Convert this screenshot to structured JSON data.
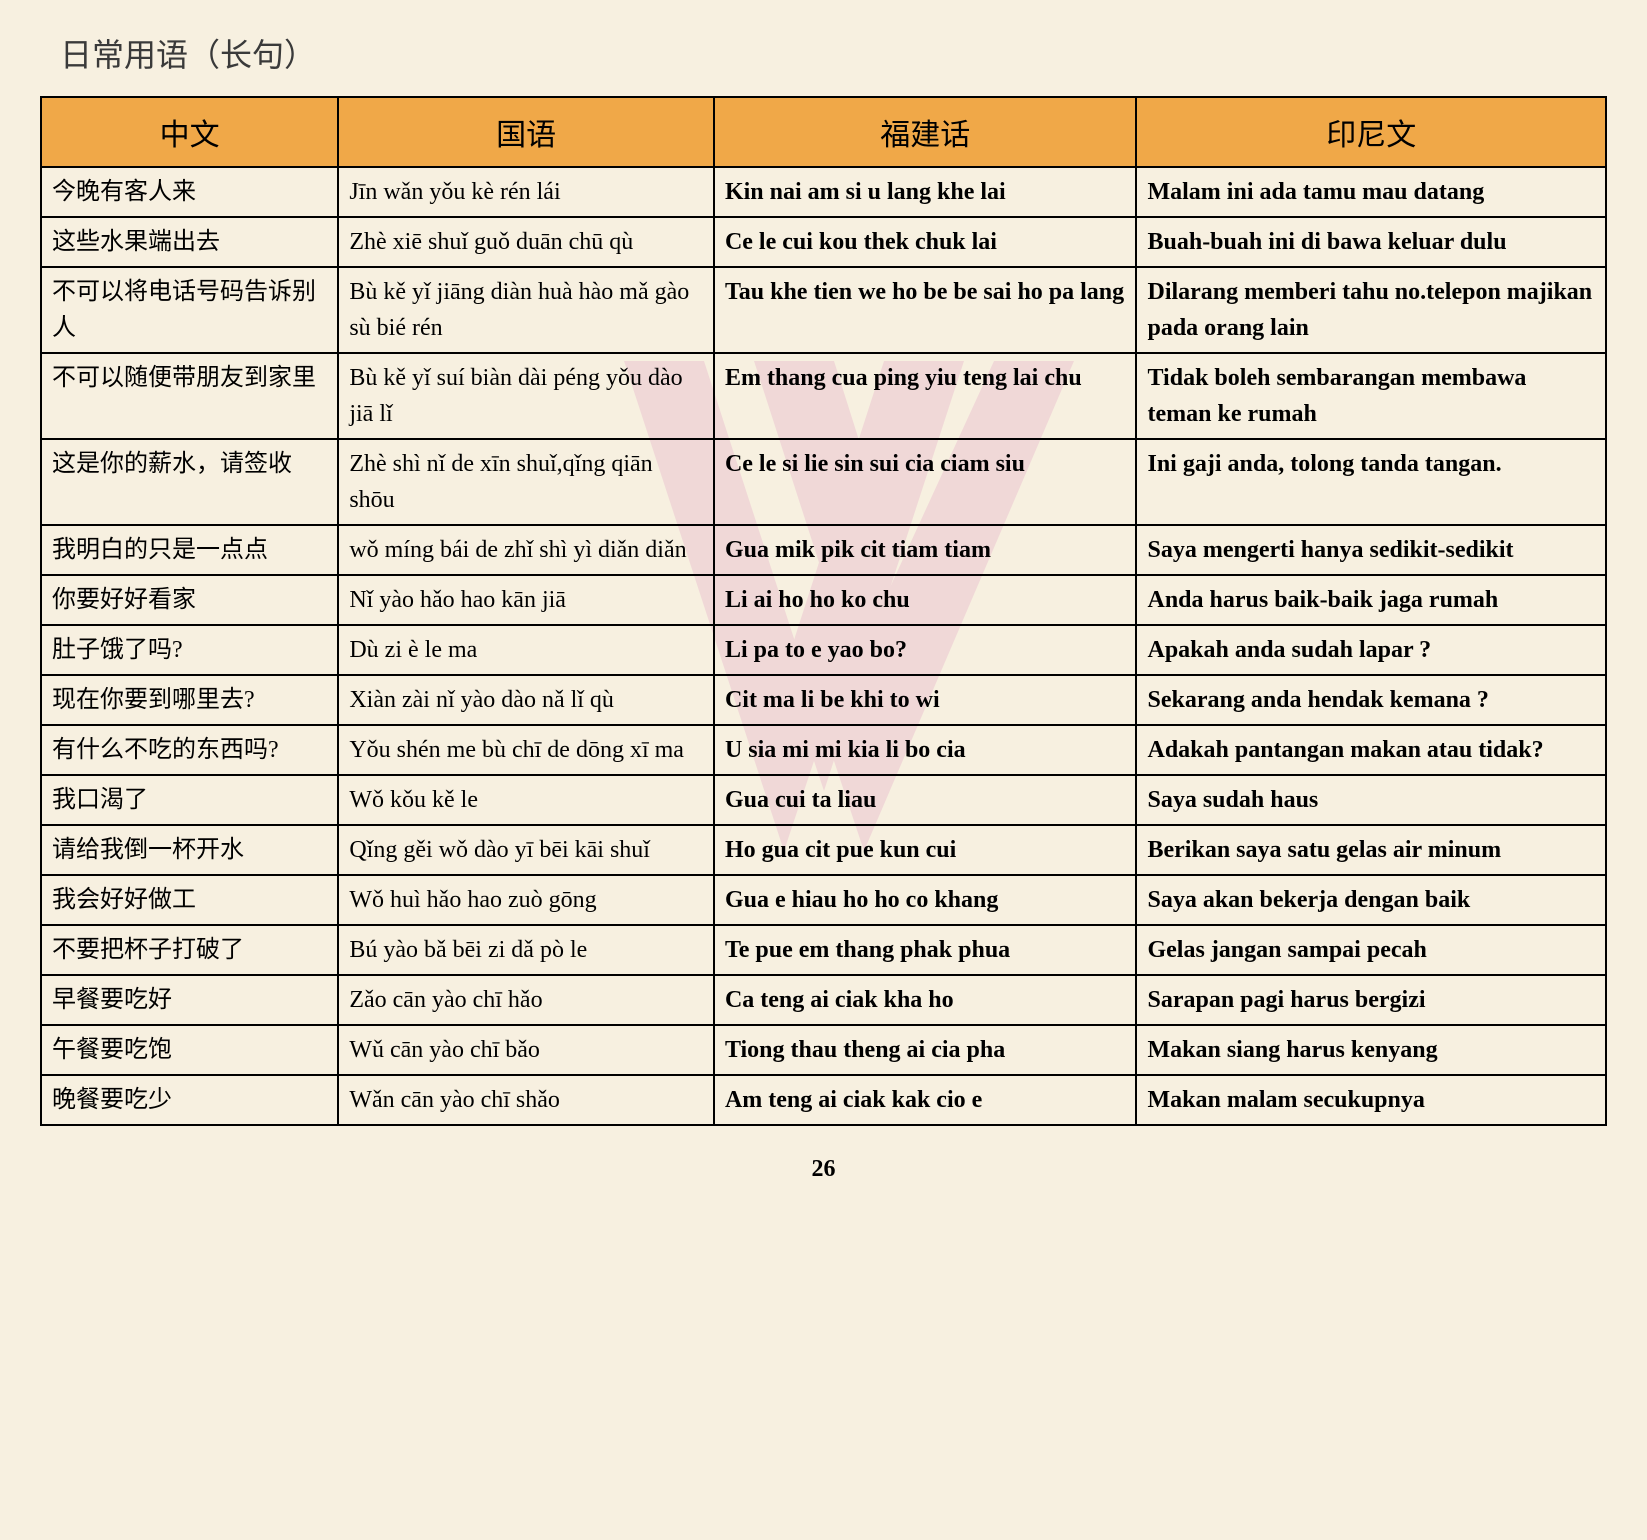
{
  "title": "日常用语（长句）",
  "page_number": "26",
  "colors": {
    "page_background": "#f7f0e0",
    "header_background": "#f0a848",
    "border": "#000000",
    "watermark": "#e8b6cc",
    "text": "#000000",
    "title_text": "#3a3a3a"
  },
  "typography": {
    "title_fontsize": 32,
    "header_fontsize": 30,
    "cell_fontsize": 24,
    "page_number_fontsize": 24,
    "chinese_font": "Songti SC, SimSun, serif",
    "latin_font": "Times New Roman, serif"
  },
  "table": {
    "column_widths_pct": [
      19,
      24,
      27,
      30
    ],
    "border_width": 2,
    "columns": [
      {
        "key": "chinese",
        "label": "中文",
        "bold": false
      },
      {
        "key": "mandarin",
        "label": "国语",
        "bold": false
      },
      {
        "key": "hokkien",
        "label": "福建话",
        "bold": true
      },
      {
        "key": "indonesian",
        "label": "印尼文",
        "bold": true
      }
    ],
    "rows": [
      {
        "chinese": "今晚有客人来",
        "mandarin": "Jīn wǎn yǒu kè rén lái",
        "hokkien": "Kin nai am si u lang khe lai",
        "indonesian": "Malam ini ada tamu mau datang"
      },
      {
        "chinese": "这些水果端出去",
        "mandarin": "Zhè xiē shuǐ guǒ duān chū qù",
        "hokkien": "Ce le cui kou thek chuk lai",
        "indonesian": "Buah-buah ini di bawa keluar dulu"
      },
      {
        "chinese": "不可以将电话号码告诉别人",
        "mandarin": "Bù kě yǐ jiāng diàn huà hào mǎ gào sù bié rén",
        "hokkien": "Tau khe tien we ho be be sai ho pa lang",
        "indonesian": "Dilarang memberi tahu no.telepon majikan pada orang lain"
      },
      {
        "chinese": "不可以随便带朋友到家里",
        "mandarin": "Bù kě yǐ suí biàn dài péng yǒu dào jiā lǐ",
        "hokkien": "Em thang cua ping yiu teng lai chu",
        "indonesian": "Tidak boleh sembarangan membawa teman ke rumah"
      },
      {
        "chinese": "这是你的薪水，请签收",
        "mandarin": "Zhè shì  nǐ de xīn shuǐ,qǐng qiān shōu",
        "hokkien": "Ce le si lie sin sui cia ciam siu",
        "indonesian": "Ini gaji anda, tolong tanda tangan."
      },
      {
        "chinese": "我明白的只是一点点",
        "mandarin": "wǒ míng  bái de zhǐ shì yì diǎn diǎn",
        "hokkien": "Gua mik pik cit tiam tiam",
        "indonesian": "Saya mengerti hanya sedikit-sedikit"
      },
      {
        "chinese": "你要好好看家",
        "mandarin": "Nǐ yào hǎo hao kān jiā",
        "hokkien": "Li ai ho ho ko chu",
        "indonesian": "Anda harus baik-baik jaga rumah"
      },
      {
        "chinese": "肚子饿了吗?",
        "mandarin": "Dù zi è le ma",
        "hokkien": "Li pa to e yao bo?",
        "indonesian": "Apakah anda sudah lapar ?"
      },
      {
        "chinese": "现在你要到哪里去?",
        "mandarin": "Xiàn zài nǐ yào dào nǎ lǐ qù",
        "hokkien": "Cit ma li be khi to wi",
        "indonesian": "Sekarang anda hendak kemana ?"
      },
      {
        "chinese": "有什么不吃的东西吗?",
        "mandarin": "Yǒu shén me bù chī de dōng xī ma",
        "hokkien": "U sia mi mi kia li bo cia",
        "indonesian": "Adakah pantangan makan atau tidak?"
      },
      {
        "chinese": "我口渴了",
        "mandarin": "Wǒ kǒu kě le",
        "hokkien": "Gua cui ta liau",
        "indonesian": "Saya sudah haus"
      },
      {
        "chinese": "请给我倒一杯开水",
        "mandarin": "Qǐng gěi  wǒ dào yī  bēi kāi shuǐ",
        "hokkien": "Ho gua cit pue kun cui",
        "indonesian": "Berikan saya satu gelas air minum"
      },
      {
        "chinese": "我会好好做工",
        "mandarin": "Wǒ huì  hǎo hao zuò gōng",
        "hokkien": "Gua e hiau ho ho co khang",
        "indonesian": "Saya akan bekerja dengan baik"
      },
      {
        "chinese": "不要把杯子打破了",
        "mandarin": "Bú yào bǎ bēi zi dǎ  pò le",
        "hokkien": "Te pue em thang phak phua",
        "indonesian": "Gelas jangan sampai pecah"
      },
      {
        "chinese": "早餐要吃好",
        "mandarin": "Zǎo cān yào chī hǎo",
        "hokkien": "Ca teng ai ciak kha ho",
        "indonesian": "Sarapan pagi harus bergizi"
      },
      {
        "chinese": "午餐要吃饱",
        "mandarin": "Wǔ cān yào chī bǎo",
        "hokkien": "Tiong thau theng ai cia pha",
        "indonesian": "Makan siang harus kenyang"
      },
      {
        "chinese": "晚餐要吃少",
        "mandarin": "Wǎn cān  yào chī  shǎo",
        "hokkien": "Am teng ai ciak kak cio e",
        "indonesian": "Makan malam secukupnya"
      }
    ]
  }
}
